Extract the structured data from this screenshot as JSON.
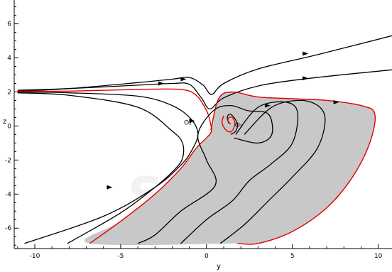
{
  "chart_data": {
    "type": "line",
    "title": "",
    "xlabel": "y",
    "ylabel": "z",
    "xlim": [
      -11.2,
      10.8
    ],
    "ylim": [
      -7.2,
      7.4
    ],
    "x_ticks": [
      -10,
      -5,
      0,
      5,
      10
    ],
    "y_ticks": [
      -6,
      -4,
      -2,
      0,
      2,
      4,
      6
    ],
    "x_tick_labels": [
      "-10",
      "-5",
      "0",
      "5",
      "10"
    ],
    "y_tick_labels": [
      "-6",
      "-4",
      "-2",
      "0",
      "2",
      "4",
      "6"
    ],
    "grid": false,
    "points": [
      {
        "label": "O₁",
        "x": 1.4,
        "y": 0.1
      },
      {
        "label": "O₂",
        "x": -0.9,
        "y": 0.0
      }
    ],
    "colors": {
      "trajectory": "#000000",
      "separatrix": "#e00000",
      "basin_fill": "#c8c8c8"
    },
    "series": [
      {
        "role": "trajectory",
        "x": [
          -11.0,
          -8.0,
          -4.0,
          -2.0,
          -1.0,
          -0.2,
          0.3,
          1.0,
          3.0,
          6.5,
          10.8
        ],
        "y": [
          2.05,
          2.2,
          2.55,
          2.75,
          2.85,
          2.4,
          1.85,
          2.5,
          3.35,
          4.2,
          5.3
        ]
      },
      {
        "role": "trajectory",
        "x": [
          -11.0,
          -8.0,
          -4.0,
          -2.0,
          -1.0,
          -0.3,
          0.2,
          1.0,
          3.0,
          6.0,
          10.8
        ],
        "y": [
          2.1,
          2.2,
          2.4,
          2.5,
          2.45,
          1.65,
          1.0,
          1.65,
          2.35,
          2.8,
          3.3
        ]
      },
      {
        "role": "trajectory",
        "x": [
          -11.0,
          -8.0,
          -4.0,
          -2.0,
          -0.9,
          -0.5,
          -0.9,
          -1.5,
          -3.0,
          -6.0,
          -10.6
        ],
        "y": [
          2.0,
          1.95,
          1.75,
          1.2,
          0.4,
          -0.5,
          -1.5,
          -2.3,
          -3.6,
          -5.3,
          -6.9
        ]
      },
      {
        "role": "trajectory",
        "x": [
          -11.0,
          -8.0,
          -4.0,
          -2.0,
          -1.4,
          -1.4,
          -1.9,
          -3.0,
          -5.0,
          -8.1
        ],
        "y": [
          1.95,
          1.8,
          1.1,
          -0.3,
          -1.0,
          -1.9,
          -2.6,
          -3.6,
          -5.1,
          -6.9
        ]
      },
      {
        "role": "separatrix",
        "x": [
          -11.0,
          -8.0,
          -4.0,
          -1.5,
          -0.6,
          -0.05,
          0.15,
          0.3
        ],
        "y": [
          2.05,
          2.05,
          2.15,
          2.15,
          1.8,
          1.0,
          0.5,
          -0.2
        ]
      },
      {
        "role": "separatrix",
        "x": [
          -6.8,
          -5.0,
          -3.0,
          -1.5,
          -0.6,
          0.0,
          0.25,
          0.3
        ],
        "y": [
          -6.9,
          -5.6,
          -4.0,
          -2.5,
          -1.3,
          -0.7,
          -0.4,
          -0.2
        ]
      },
      {
        "role": "separatrix",
        "x": [
          0.25,
          0.7,
          1.5,
          3.0,
          5.0,
          7.0,
          9.0,
          9.8,
          9.5,
          8.5,
          7.0,
          5.0,
          3.0,
          1.8
        ],
        "y": [
          -0.25,
          1.6,
          2.0,
          1.7,
          1.6,
          1.5,
          1.2,
          0.7,
          -1.0,
          -3.0,
          -4.8,
          -6.2,
          -6.9,
          -6.9
        ]
      },
      {
        "role": "trajectory",
        "x": [
          -4.0,
          -3.0,
          -1.5,
          0.5,
          0.0,
          -0.5,
          0.4,
          1.4,
          2.4,
          3.6,
          3.8,
          3.0,
          1.6
        ],
        "y": [
          -6.9,
          -6.4,
          -5.0,
          -3.5,
          -2.0,
          -0.5,
          0.9,
          1.2,
          0.9,
          0.7,
          -0.5,
          -1.0,
          -0.7
        ]
      },
      {
        "role": "trajectory",
        "x": [
          -1.5,
          0.0,
          1.5,
          2.5,
          3.8,
          5.0,
          5.3,
          4.6,
          3.0,
          1.7
        ],
        "y": [
          -6.9,
          -5.5,
          -4.4,
          -3.2,
          -2.2,
          -1.0,
          0.8,
          1.4,
          1.1,
          -0.5
        ]
      },
      {
        "role": "trajectory",
        "x": [
          0.8,
          2.2,
          3.6,
          5.0,
          6.4,
          6.9,
          6.6,
          5.5,
          3.8,
          2.2
        ],
        "y": [
          -6.9,
          -5.8,
          -4.4,
          -3.0,
          -1.4,
          0.2,
          1.1,
          1.5,
          1.1,
          -0.5
        ]
      },
      {
        "role": "trajectory",
        "x": [
          1.3,
          1.2,
          1.35,
          1.6,
          1.8,
          1.7,
          1.4
        ],
        "y": [
          0.15,
          0.5,
          0.7,
          0.5,
          0.1,
          -0.3,
          -0.5
        ]
      },
      {
        "role": "separatrix",
        "x": [
          1.4,
          1.25,
          1.3,
          1.5,
          1.65,
          1.55,
          1.35,
          1.1,
          0.9,
          1.0
        ],
        "y": [
          0.1,
          0.3,
          0.5,
          0.5,
          0.2,
          -0.2,
          -0.35,
          -0.2,
          0.2,
          0.6
        ]
      }
    ],
    "arrows": [
      {
        "x": 5.8,
        "y": 4.25
      },
      {
        "x": 5.8,
        "y": 2.8
      },
      {
        "x": -2.6,
        "y": 2.5
      },
      {
        "x": -1.3,
        "y": 2.75
      },
      {
        "x": -5.6,
        "y": -3.6
      },
      {
        "x": -0.8,
        "y": 0.3
      },
      {
        "x": 3.6,
        "y": 1.2
      },
      {
        "x": 7.6,
        "y": 1.4
      }
    ]
  }
}
